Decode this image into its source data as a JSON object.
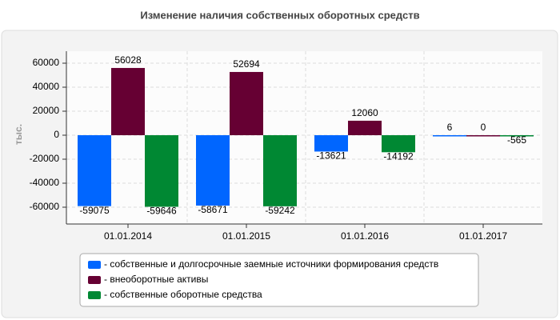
{
  "chart_data": {
    "type": "bar",
    "title": "Изменение наличия собственных оборотных средств",
    "y_label": "тыс.",
    "categories": [
      "01.01.2014",
      "01.01.2015",
      "01.01.2016",
      "01.01.2017"
    ],
    "series": [
      {
        "name": "- собственные и долгосрочные заемные источники формирования средств",
        "color": "#0066ff",
        "values": [
          -59075,
          -58671,
          -13621,
          6
        ]
      },
      {
        "name": "- внеоборотные активы",
        "color": "#660033",
        "values": [
          56028,
          52694,
          12060,
          0
        ]
      },
      {
        "name": "- собственные оборотные средства",
        "color": "#008833",
        "values": [
          -59646,
          -59242,
          -14192,
          -565
        ]
      }
    ],
    "ylim": [
      -74000,
      70000
    ],
    "yticks": [
      -60000,
      -40000,
      -20000,
      0,
      20000,
      40000,
      60000
    ],
    "grid": true
  }
}
